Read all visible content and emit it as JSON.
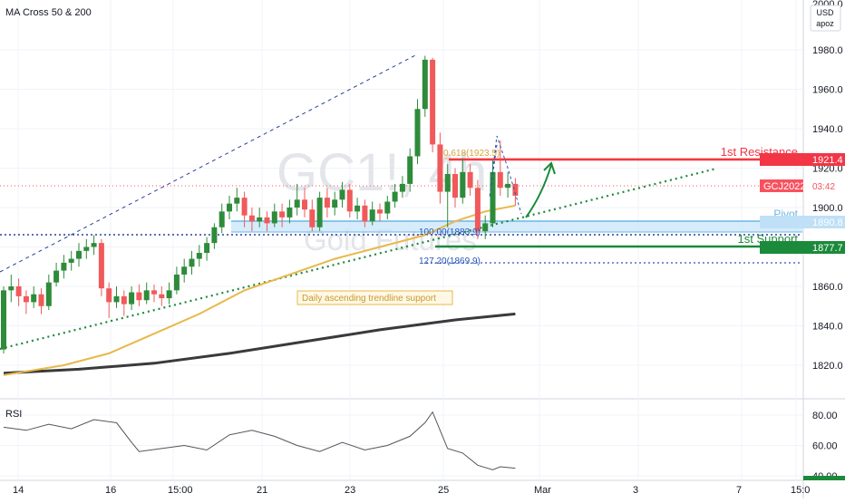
{
  "indicator_title": "MA Cross 50 & 200",
  "watermark": {
    "symbol": "GC1!, 4h",
    "name": "Gold Futures"
  },
  "currency_menu": {
    "currency": "USD",
    "user": "apoz"
  },
  "price_axis": {
    "top_label": "2000.0",
    "tick_labels": [
      "1980.0",
      "1960.0",
      "1940.0",
      "1920.0",
      "1900.0",
      "1880.0",
      "1860.0",
      "1840.0",
      "1820.0"
    ]
  },
  "time_axis": {
    "labels": [
      "14",
      "16",
      "15:00",
      "21",
      "23",
      "25",
      "Mar",
      "3",
      "7",
      "15:0"
    ]
  },
  "price_tags": [
    {
      "name": "resistance-price-tag",
      "text": "1921.4",
      "color": "#f23645"
    },
    {
      "name": "symbol-price-tag",
      "text": "GCJ2022",
      "extra": "03:42",
      "color": "#f7525f"
    },
    {
      "name": "pivot-price-tag",
      "text": "1890.8",
      "color": "#bfe0f7",
      "text_color": "#131722"
    },
    {
      "name": "support-price-tag",
      "text": "1877.7",
      "color": "#1b8a3a"
    }
  ],
  "annotations": {
    "fib_618": "0.618(1923.5)",
    "fib_100": "100.00(1883.9)",
    "fib_1272": "127.20(1869.9)",
    "resistance": "1st Resistance",
    "pivot": "Pivot",
    "support": "1st Support",
    "trendline": "Daily ascending trendline support"
  },
  "colors": {
    "up": "#2e8b3a",
    "down": "#f05a5a",
    "ma50": "#e8b84a",
    "ma200": "#3a3a3a",
    "resistance": "#f23645",
    "support": "#1b8a3a",
    "pivot": "#9fd0f0",
    "rsi": "#555555"
  },
  "rsi_panel": {
    "title": "RSI",
    "tick_labels": [
      "80.00",
      "60.00",
      "40.00"
    ]
  },
  "chart_data": {
    "type": "candlestick",
    "ylim": [
      1812,
      2001
    ],
    "levels": {
      "resistance": 1921.4,
      "pivot": 1890.8,
      "support": 1877.7,
      "fib_618": 1923.5,
      "fib_100": 1883.9,
      "fib_1272": 1869.9,
      "last_price": 1910
    },
    "candles": [
      [
        1828,
        1858,
        1826,
        1860
      ],
      [
        1858,
        1860,
        1852,
        1866
      ],
      [
        1860,
        1855,
        1850,
        1864
      ],
      [
        1855,
        1852,
        1846,
        1858
      ],
      [
        1852,
        1856,
        1849,
        1860
      ],
      [
        1856,
        1850,
        1846,
        1859
      ],
      [
        1850,
        1862,
        1848,
        1866
      ],
      [
        1862,
        1868,
        1860,
        1872
      ],
      [
        1868,
        1872,
        1864,
        1876
      ],
      [
        1872,
        1874,
        1868,
        1878
      ],
      [
        1874,
        1878,
        1870,
        1882
      ],
      [
        1878,
        1880,
        1874,
        1884
      ],
      [
        1880,
        1882,
        1876,
        1886
      ],
      [
        1882,
        1859,
        1855,
        1884
      ],
      [
        1859,
        1852,
        1844,
        1862
      ],
      [
        1852,
        1855,
        1849,
        1860
      ],
      [
        1855,
        1851,
        1845,
        1858
      ],
      [
        1851,
        1857,
        1848,
        1860
      ],
      [
        1857,
        1853,
        1850,
        1861
      ],
      [
        1853,
        1858,
        1851,
        1862
      ],
      [
        1858,
        1856,
        1852,
        1861
      ],
      [
        1856,
        1854,
        1850,
        1860
      ],
      [
        1854,
        1858,
        1851,
        1862
      ],
      [
        1858,
        1866,
        1856,
        1870
      ],
      [
        1866,
        1870,
        1862,
        1874
      ],
      [
        1870,
        1874,
        1866,
        1878
      ],
      [
        1874,
        1877,
        1870,
        1881
      ],
      [
        1877,
        1882,
        1873,
        1885
      ],
      [
        1882,
        1890,
        1879,
        1892
      ],
      [
        1890,
        1898,
        1887,
        1902
      ],
      [
        1898,
        1902,
        1894,
        1906
      ],
      [
        1902,
        1905,
        1898,
        1910
      ],
      [
        1905,
        1896,
        1890,
        1908
      ],
      [
        1896,
        1893,
        1888,
        1900
      ],
      [
        1893,
        1895,
        1890,
        1900
      ],
      [
        1895,
        1892,
        1888,
        1898
      ],
      [
        1892,
        1898,
        1890,
        1902
      ],
      [
        1898,
        1895,
        1890,
        1902
      ],
      [
        1895,
        1900,
        1892,
        1904
      ],
      [
        1900,
        1904,
        1896,
        1912
      ],
      [
        1904,
        1899,
        1895,
        1910
      ],
      [
        1899,
        1890,
        1888,
        1904
      ],
      [
        1890,
        1905,
        1888,
        1908
      ],
      [
        1905,
        1900,
        1895,
        1910
      ],
      [
        1900,
        1904,
        1896,
        1908
      ],
      [
        1904,
        1909,
        1900,
        1913
      ],
      [
        1909,
        1898,
        1895,
        1912
      ],
      [
        1898,
        1901,
        1894,
        1905
      ],
      [
        1901,
        1893,
        1890,
        1904
      ],
      [
        1893,
        1899,
        1891,
        1903
      ],
      [
        1899,
        1897,
        1893,
        1902
      ],
      [
        1897,
        1903,
        1894,
        1906
      ],
      [
        1903,
        1908,
        1900,
        1912
      ],
      [
        1908,
        1912,
        1905,
        1916
      ],
      [
        1912,
        1926,
        1908,
        1930
      ],
      [
        1926,
        1950,
        1922,
        1955
      ],
      [
        1950,
        1975,
        1946,
        1977
      ],
      [
        1975,
        1932,
        1928,
        1976
      ],
      [
        1932,
        1908,
        1902,
        1938
      ],
      [
        1908,
        1917,
        1890,
        1922
      ],
      [
        1917,
        1905,
        1900,
        1920
      ],
      [
        1905,
        1918,
        1902,
        1925
      ],
      [
        1918,
        1910,
        1906,
        1922
      ],
      [
        1910,
        1888,
        1884,
        1914
      ],
      [
        1888,
        1892,
        1884,
        1896
      ],
      [
        1892,
        1918,
        1890,
        1924
      ],
      [
        1918,
        1910,
        1906,
        1934
      ],
      [
        1910,
        1912,
        1905,
        1918
      ],
      [
        1912,
        1906,
        1901,
        1915
      ]
    ],
    "ma50": [
      [
        0,
        1815
      ],
      [
        8,
        1820
      ],
      [
        14,
        1826
      ],
      [
        20,
        1836
      ],
      [
        26,
        1846
      ],
      [
        32,
        1858
      ],
      [
        38,
        1866
      ],
      [
        44,
        1874
      ],
      [
        50,
        1880
      ],
      [
        56,
        1886
      ],
      [
        60,
        1893
      ],
      [
        64,
        1898
      ],
      [
        68,
        1901
      ]
    ],
    "ma200": [
      [
        0,
        1816
      ],
      [
        10,
        1818
      ],
      [
        20,
        1821
      ],
      [
        30,
        1826
      ],
      [
        40,
        1832
      ],
      [
        50,
        1838
      ],
      [
        60,
        1843
      ],
      [
        68,
        1846
      ]
    ],
    "rsi": [
      [
        0,
        72
      ],
      [
        3,
        70
      ],
      [
        6,
        74
      ],
      [
        9,
        71
      ],
      [
        12,
        77
      ],
      [
        15,
        75
      ],
      [
        17,
        62
      ],
      [
        18,
        56
      ],
      [
        21,
        58
      ],
      [
        24,
        60
      ],
      [
        27,
        57
      ],
      [
        30,
        67
      ],
      [
        33,
        70
      ],
      [
        36,
        66
      ],
      [
        39,
        60
      ],
      [
        42,
        56
      ],
      [
        45,
        62
      ],
      [
        48,
        57
      ],
      [
        51,
        60
      ],
      [
        54,
        66
      ],
      [
        56,
        75
      ],
      [
        57,
        82
      ],
      [
        58,
        70
      ],
      [
        59,
        58
      ],
      [
        61,
        55
      ],
      [
        63,
        47
      ],
      [
        65,
        44
      ],
      [
        66,
        46
      ],
      [
        68,
        45
      ]
    ]
  }
}
